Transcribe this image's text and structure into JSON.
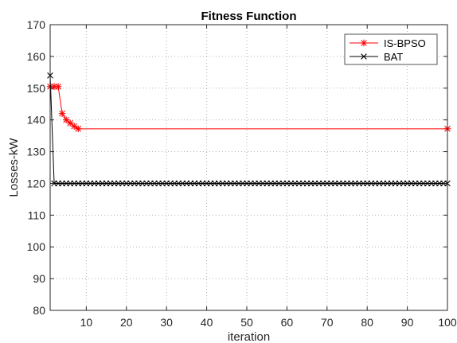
{
  "chart_data": {
    "type": "line",
    "title": "Fitness Function",
    "xlabel": "iteration",
    "ylabel": "Losses-kW",
    "xlim": [
      1,
      100
    ],
    "ylim": [
      80,
      170
    ],
    "xticks": [
      10,
      20,
      30,
      40,
      50,
      60,
      70,
      80,
      90,
      100
    ],
    "yticks": [
      80,
      90,
      100,
      110,
      120,
      130,
      140,
      150,
      160,
      170
    ],
    "grid": true,
    "legend_position": "top-right",
    "series": [
      {
        "name": "IS-BPSO",
        "color": "#ff0000",
        "marker": "asterisk",
        "x": [
          1,
          2,
          3,
          4,
          5,
          6,
          7,
          8,
          100
        ],
        "y": [
          150.5,
          150.5,
          150.5,
          142,
          140,
          139,
          138,
          137.2,
          137.2
        ]
      },
      {
        "name": "BAT",
        "color": "#000000",
        "marker": "x",
        "x_start": 1,
        "x_end": 100,
        "y": [
          154,
          120,
          120,
          120,
          120,
          120,
          120,
          120,
          120,
          120,
          120,
          120,
          120,
          120,
          120,
          120,
          120,
          120,
          120,
          120,
          120,
          120,
          120,
          120,
          120,
          120,
          120,
          120,
          120,
          120,
          120,
          120,
          120,
          120,
          120,
          120,
          120,
          120,
          120,
          120,
          120,
          120,
          120,
          120,
          120,
          120,
          120,
          120,
          120,
          120,
          120,
          120,
          120,
          120,
          120,
          120,
          120,
          120,
          120,
          120,
          120,
          120,
          120,
          120,
          120,
          120,
          120,
          120,
          120,
          120,
          120,
          120,
          120,
          120,
          120,
          120,
          120,
          120,
          120,
          120,
          120,
          120,
          120,
          120,
          120,
          120,
          120,
          120,
          120,
          120,
          120,
          120,
          120,
          120,
          120,
          120,
          120,
          120,
          120,
          120
        ]
      }
    ]
  }
}
